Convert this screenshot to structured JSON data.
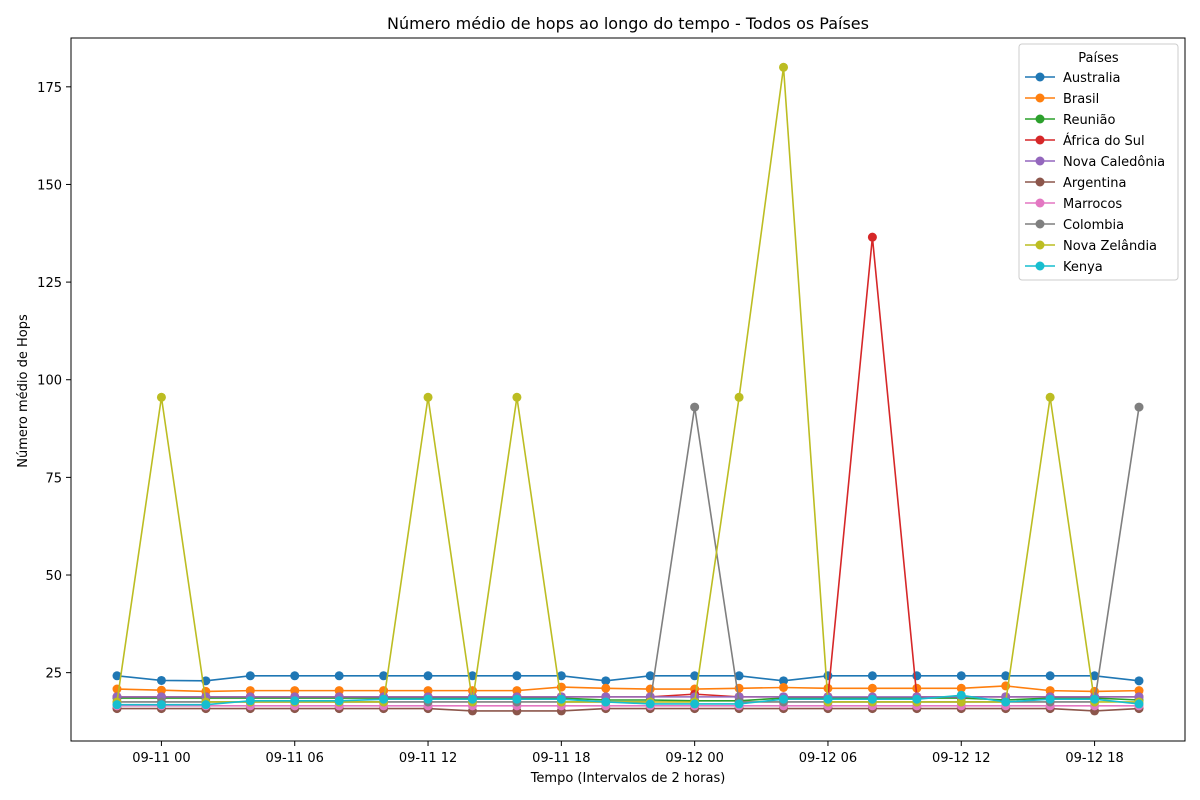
{
  "chart_data": {
    "type": "line",
    "title": "Número médio de hops ao longo do tempo - Todos os Países",
    "xlabel": "Tempo (Intervalos de 2 horas)",
    "ylabel": "Número médio de Hops",
    "x_tick_labels": [
      "09-11 00",
      "09-11 06",
      "09-11 12",
      "09-11 18",
      "09-12 00",
      "09-12 06",
      "09-12 12",
      "09-12 18"
    ],
    "y_ticks": [
      25,
      50,
      75,
      100,
      125,
      150,
      175
    ],
    "ylim": [
      7.5,
      187.5
    ],
    "grid": false,
    "legend": {
      "title": "Países",
      "placement": "top-right"
    },
    "x": [
      "09-10 22:00",
      "09-11 00:00",
      "09-11 02:00",
      "09-11 04:00",
      "09-11 06:00",
      "09-11 08:00",
      "09-11 10:00",
      "09-11 12:00",
      "09-11 14:00",
      "09-11 16:00",
      "09-11 18:00",
      "09-11 20:00",
      "09-11 22:00",
      "09-12 00:00",
      "09-12 02:00",
      "09-12 04:00",
      "09-12 06:00",
      "09-12 08:00",
      "09-12 10:00",
      "09-12 12:00",
      "09-12 14:00",
      "09-12 16:00",
      "09-12 18:00",
      "09-12 20:00"
    ],
    "series": [
      {
        "name": "Australia",
        "color": "#1f77b4",
        "values": [
          24.2,
          23,
          22.9,
          24.2,
          24.2,
          24.2,
          24.2,
          24.2,
          24.2,
          24.2,
          24.2,
          22.9,
          24.2,
          24.2,
          24.2,
          22.9,
          24.2,
          24.2,
          24.2,
          24.2,
          24.2,
          24.2,
          24.2,
          22.9
        ]
      },
      {
        "name": "Brasil",
        "color": "#ff7f0e",
        "values": [
          20.8,
          20.5,
          20.2,
          20.4,
          20.4,
          20.4,
          20.4,
          20.4,
          20.4,
          20.4,
          21.3,
          21.0,
          20.8,
          20.8,
          21.0,
          21.2,
          21.0,
          21.0,
          21.0,
          21.0,
          21.6,
          20.4,
          20.2,
          20.4
        ]
      },
      {
        "name": "Reunião",
        "color": "#2ca02c",
        "values": [
          18.5,
          18.5,
          18.5,
          18.5,
          18.5,
          18.5,
          18.5,
          18.5,
          18.5,
          18.5,
          18.5,
          18.0,
          18.0,
          17.8,
          17.8,
          18.5,
          18.5,
          18.5,
          18.5,
          18.5,
          18.0,
          18.5,
          18.5,
          18.0
        ]
      },
      {
        "name": "África do Sul",
        "color": "#d62728",
        "values": [
          18.8,
          18.8,
          18.8,
          18.8,
          18.8,
          18.8,
          18.8,
          18.8,
          18.8,
          18.8,
          18.8,
          18.8,
          18.8,
          19.5,
          18.8,
          18.8,
          18.8,
          136.5,
          18.8,
          18.8,
          18.8,
          18.8,
          18.8,
          18.8
        ]
      },
      {
        "name": "Nova Caledônia",
        "color": "#9467bd",
        "values": [
          18.8,
          18.8,
          18.8,
          18.8,
          18.8,
          18.8,
          18.8,
          18.8,
          18.8,
          18.8,
          18.8,
          18.8,
          18.8,
          18.8,
          18.8,
          18.8,
          18.8,
          18.8,
          18.8,
          18.8,
          18.8,
          18.8,
          18.8,
          18.8
        ]
      },
      {
        "name": "Argentina",
        "color": "#8c564b",
        "values": [
          15.8,
          15.8,
          15.8,
          15.8,
          15.8,
          15.8,
          15.8,
          15.8,
          15.2,
          15.2,
          15.2,
          15.8,
          15.8,
          15.8,
          15.8,
          15.8,
          15.8,
          15.8,
          15.8,
          15.8,
          15.8,
          15.8,
          15.2,
          15.8
        ]
      },
      {
        "name": "Marrocos",
        "color": "#e377c2",
        "values": [
          16.5,
          16.5,
          16.5,
          16.5,
          16.5,
          16.5,
          16.5,
          16.5,
          16.5,
          16.5,
          16.5,
          16.5,
          16.5,
          16.5,
          16.5,
          16.5,
          16.5,
          16.5,
          16.5,
          16.5,
          16.5,
          16.5,
          16.5,
          16.5
        ]
      },
      {
        "name": "Colombia",
        "color": "#7f7f7f",
        "values": [
          17.5,
          17.5,
          17.5,
          17.5,
          17.5,
          17.5,
          17.5,
          17.5,
          17.5,
          17.5,
          17.5,
          17.5,
          17.5,
          93.0,
          17.5,
          17.5,
          17.5,
          17.5,
          17.5,
          17.5,
          17.5,
          17.5,
          17.5,
          93.0
        ]
      },
      {
        "name": "Nova Zelândia",
        "color": "#bcbd22",
        "values": [
          17.5,
          95.5,
          17.5,
          17.5,
          17.5,
          17.5,
          17.5,
          95.5,
          17.5,
          95.5,
          17.5,
          17.5,
          17.5,
          17.5,
          95.5,
          180.0,
          17.5,
          17.5,
          17.5,
          17.5,
          17.5,
          95.5,
          17.5,
          17.5
        ]
      },
      {
        "name": "Kenya",
        "color": "#17becf",
        "values": [
          16.8,
          16.8,
          16.8,
          17.8,
          17.8,
          17.8,
          18.2,
          18.2,
          18.2,
          18.2,
          18.2,
          17.5,
          17.0,
          17.0,
          17.0,
          18.2,
          18.2,
          18.2,
          18.2,
          19.2,
          17.5,
          18.2,
          18.2,
          17.0
        ]
      }
    ]
  }
}
